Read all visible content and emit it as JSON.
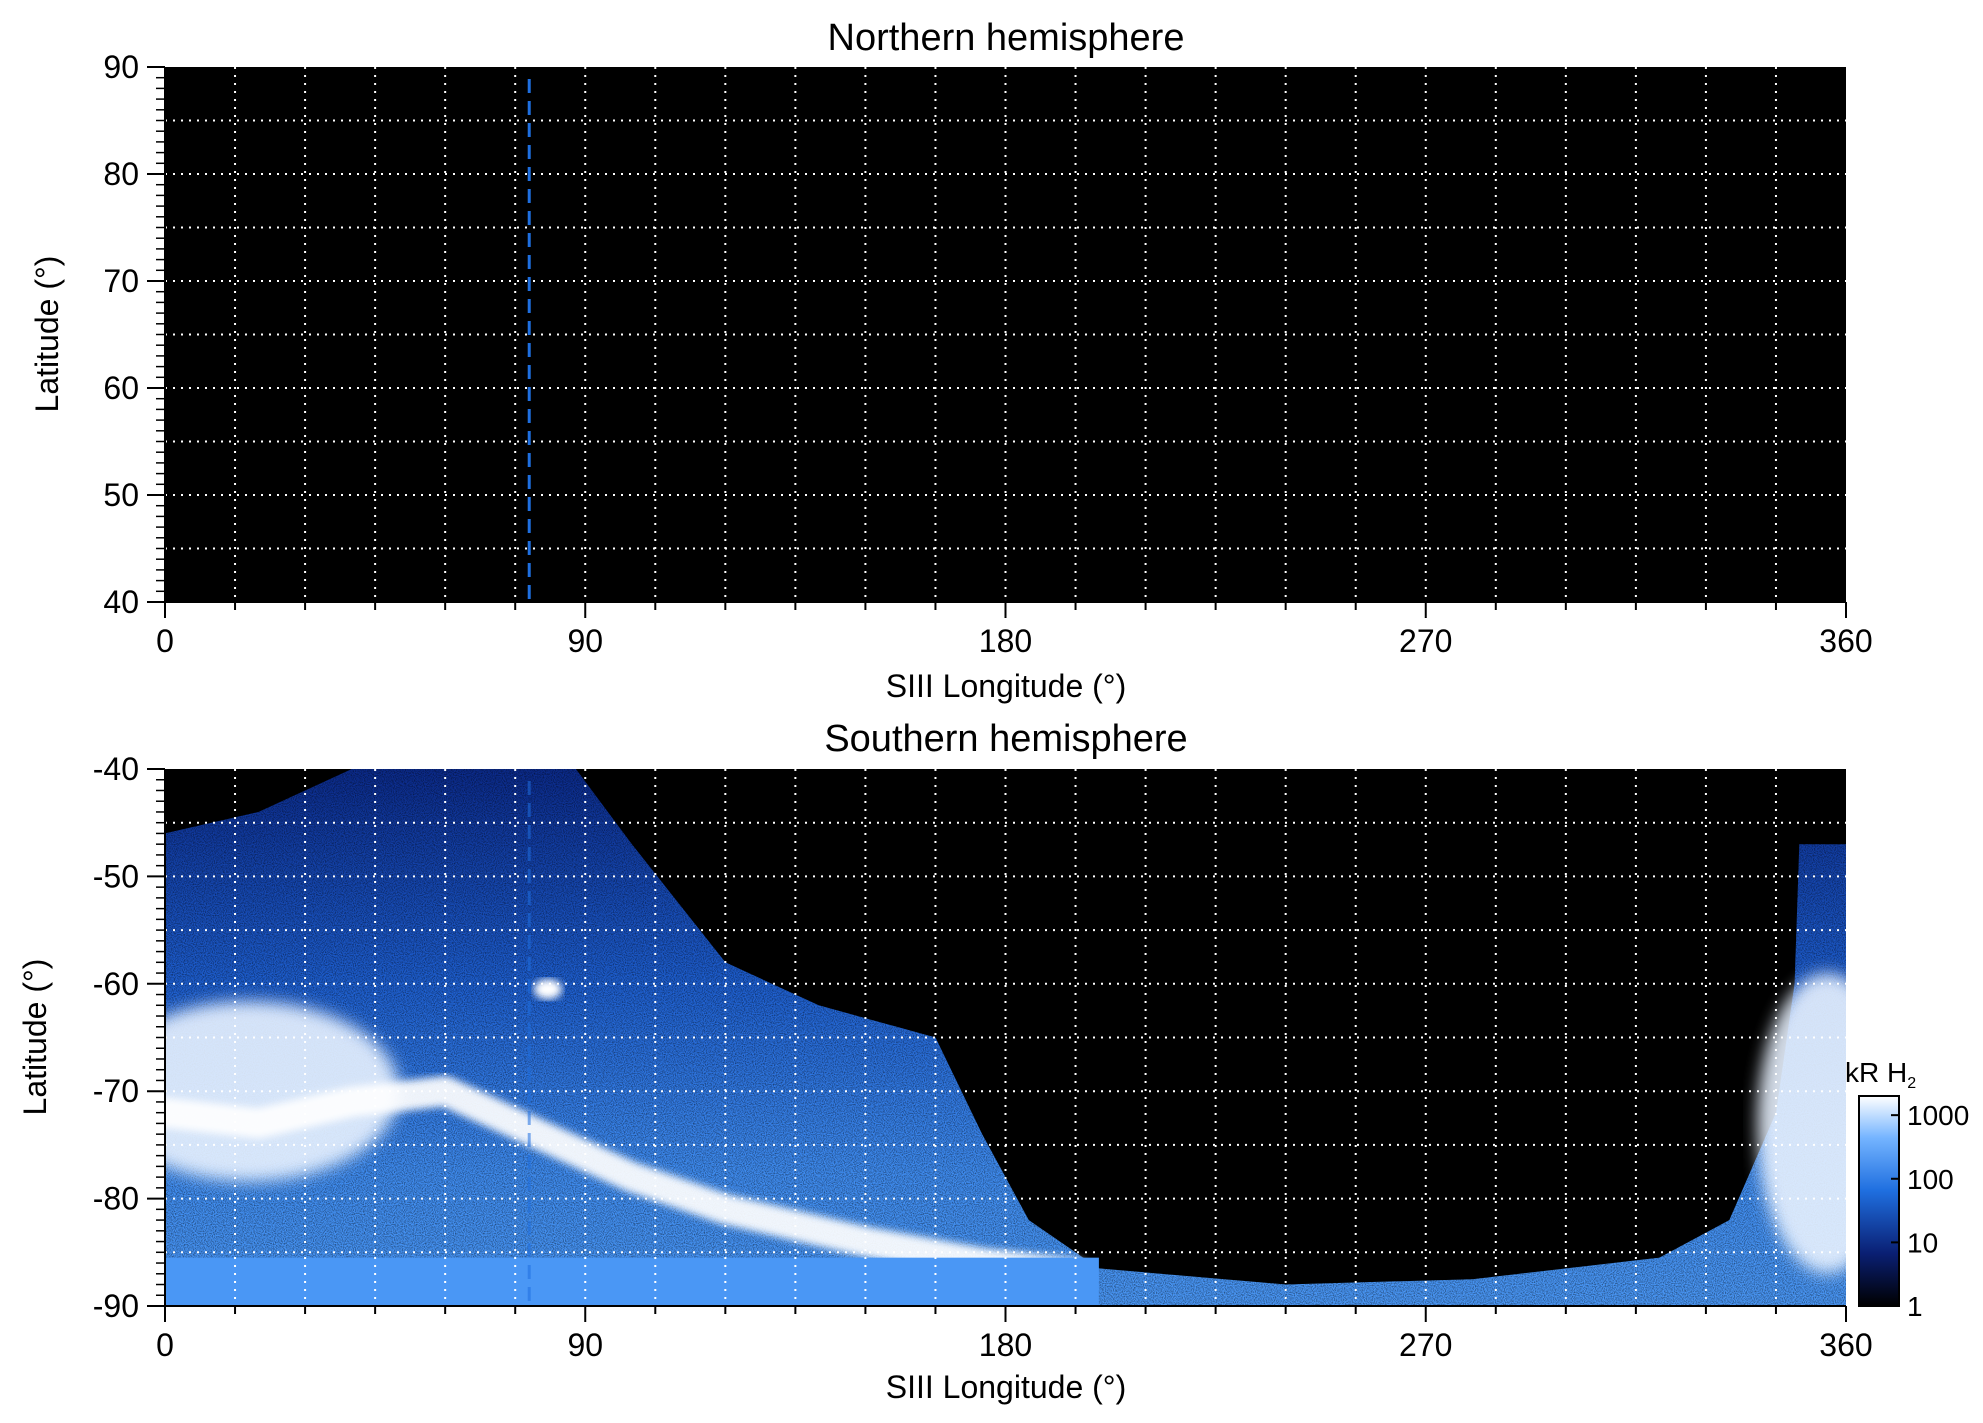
{
  "chart_data": [
    {
      "type": "heatmap",
      "title": "Northern hemisphere",
      "xlabel": "SIII Longitude (°)",
      "ylabel": "Latitude (°)",
      "xlim": [
        0,
        360
      ],
      "ylim": [
        40,
        90
      ],
      "xticks": [
        "0",
        "90",
        "180",
        "270",
        "360"
      ],
      "yticks": [
        "90",
        "80",
        "70",
        "60",
        "50",
        "40"
      ],
      "grid": true,
      "background": "#000000",
      "marker_longitude": 78,
      "marker_color": "#1f6fe0",
      "emission": "none"
    },
    {
      "type": "heatmap",
      "title": "Southern hemisphere",
      "xlabel": "SIII Longitude (°)",
      "ylabel": "Latitude (°)",
      "xlim": [
        0,
        360
      ],
      "ylim": [
        -90,
        -40
      ],
      "xticks": [
        "0",
        "90",
        "180",
        "270",
        "360"
      ],
      "yticks": [
        "-40",
        "-50",
        "-60",
        "-70",
        "-80",
        "-90"
      ],
      "grid": true,
      "background": "#000000",
      "marker_longitude": 78,
      "marker_color": "#1f6fe0",
      "observed_region_boundary": [
        {
          "lon": 0,
          "lat": -46
        },
        {
          "lon": 20,
          "lat": -44
        },
        {
          "lon": 40,
          "lat": -40
        },
        {
          "lon": 88,
          "lat": -40
        },
        {
          "lon": 100,
          "lat": -47
        },
        {
          "lon": 120,
          "lat": -58
        },
        {
          "lon": 140,
          "lat": -62
        },
        {
          "lon": 165,
          "lat": -65
        },
        {
          "lon": 175,
          "lat": -74
        },
        {
          "lon": 185,
          "lat": -82
        },
        {
          "lon": 200,
          "lat": -86.5
        },
        {
          "lon": 240,
          "lat": -88
        },
        {
          "lon": 280,
          "lat": -87.5
        },
        {
          "lon": 320,
          "lat": -85.5
        },
        {
          "lon": 335,
          "lat": -82
        },
        {
          "lon": 345,
          "lat": -72
        },
        {
          "lon": 349,
          "lat": -60
        },
        {
          "lon": 350,
          "lat": -47
        },
        {
          "lon": 360,
          "lat": -47
        },
        {
          "lon": 360,
          "lat": -90
        },
        {
          "lon": 0,
          "lat": -90
        }
      ],
      "main_oval": [
        {
          "lon": 0,
          "lat": -72
        },
        {
          "lon": 20,
          "lat": -73
        },
        {
          "lon": 40,
          "lat": -71
        },
        {
          "lon": 60,
          "lat": -70
        },
        {
          "lon": 80,
          "lat": -74
        },
        {
          "lon": 100,
          "lat": -78
        },
        {
          "lon": 120,
          "lat": -81
        },
        {
          "lon": 150,
          "lat": -84
        },
        {
          "lon": 175,
          "lat": -86
        },
        {
          "lon": 195,
          "lat": -87
        }
      ],
      "bright_spot": {
        "lon": 82,
        "lat": -60.5
      },
      "colorbar": {
        "title_prefix": "kR H",
        "title_subscript": "2",
        "ticks": [
          "1000",
          "100",
          "10",
          "1"
        ],
        "scale": "log",
        "range": [
          1,
          2000
        ]
      },
      "colors": {
        "low": "#000000",
        "mid_low": "#0a1f73",
        "mid": "#1f6fe0",
        "high": "#74b4ff",
        "max": "#ffffff"
      }
    }
  ]
}
